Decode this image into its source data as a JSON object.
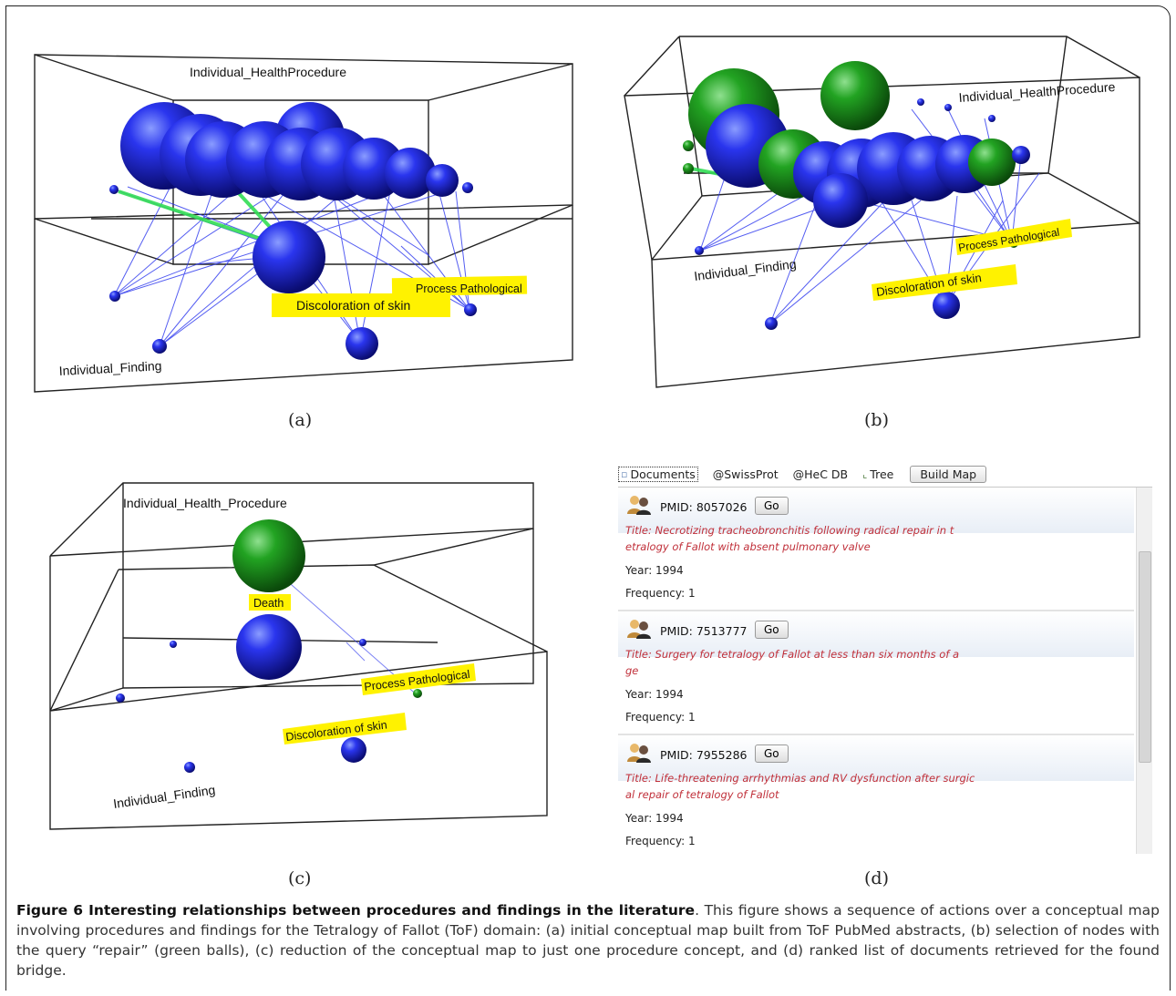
{
  "panel_a": {
    "labels": {
      "top_box": "Individual_HealthProcedure",
      "bottom_box": "Individual_Finding"
    },
    "tags": [
      "Discoloration of skin",
      "Process Pathological"
    ],
    "sublabel": "(a)"
  },
  "panel_b": {
    "labels": {
      "top_box": "Individual_HealthProcedure",
      "bottom_box": "Individual_Finding"
    },
    "tags": [
      "Discoloration of skin",
      "Process Pathological"
    ],
    "sublabel": "(b)"
  },
  "panel_c": {
    "labels": {
      "top_box": "Individual_Health_Procedure",
      "bottom_box": "Individual_Finding"
    },
    "tags": [
      "Death",
      "Process Pathological",
      "Discoloration of skin"
    ],
    "sublabel": "(c)"
  },
  "panel_d": {
    "toolbar": {
      "documents": "Documents",
      "swissprot": "@SwissProt",
      "hecdb": "@HeC DB",
      "tree": "Tree",
      "build_map": "Build Map"
    },
    "entries": [
      {
        "pmid": "PMID: 8057026",
        "go": "Go",
        "title_line1": "Title: Necrotizing tracheobronchitis following radical repair in t",
        "title_line2": "etralogy of Fallot with absent pulmonary valve",
        "year": "Year: 1994",
        "frequency": "Frequency: 1"
      },
      {
        "pmid": "PMID: 7513777",
        "go": "Go",
        "title_line1": "Title: Surgery for tetralogy of Fallot at less than six months of a",
        "title_line2": "ge",
        "year": "Year: 1994",
        "frequency": "Frequency: 1"
      },
      {
        "pmid": "PMID: 7955286",
        "go": "Go",
        "title_line1": "Title: Life-threatening arrhythmias and RV dysfunction after surgic",
        "title_line2": "al repair of tetralogy of Fallot",
        "year": "Year: 1994",
        "frequency": "Frequency: 1"
      }
    ],
    "sublabel": "(d)"
  },
  "caption": {
    "bold": "Figure 6 Interesting relationships between procedures and findings in the literature",
    "text": ". This figure shows a sequence of actions over a conceptual map involving procedures and findings for the Tetralogy of Fallot (ToF) domain: (a) initial conceptual map built from ToF PubMed abstracts, (b) selection of nodes with the query “repair” (green balls), (c) reduction of the conceptual map to just one procedure concept, and (d) ranked list of documents retrieved for the found bridge."
  },
  "colors": {
    "node_blue": "#1a1fd0",
    "node_green": "#1f8a1f",
    "tag_yellow": "#fff200",
    "title_red": "#c0303a"
  }
}
